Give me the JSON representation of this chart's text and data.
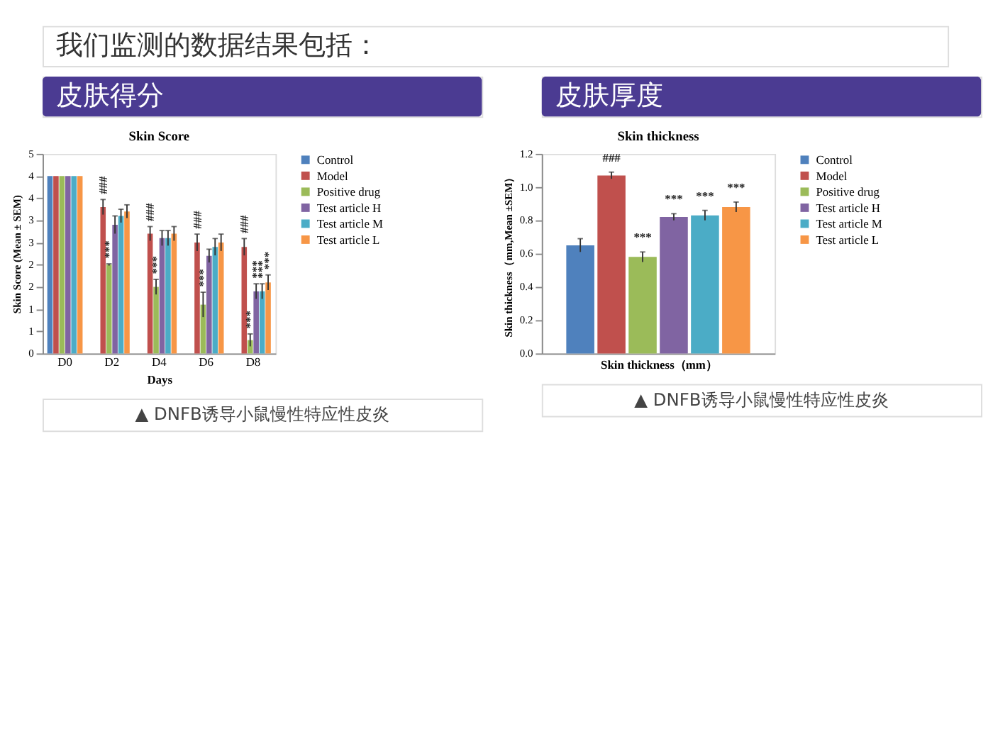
{
  "chart_data": [
    {
      "type": "bar",
      "title": "Skin Score",
      "subtitle": "皮肤得分",
      "xlabel": "Days",
      "ylabel": "Skin Score (Mean ± SEM)",
      "annotations": [
        "我们监测的数据结果包括：",
        "▲ DNFB诱导小鼠慢性特应性皮炎"
      ],
      "categories": [
        "D0",
        "D2",
        "D4",
        "D6",
        "D8"
      ],
      "series": [
        {
          "name": "Control",
          "color": "#4f81bd",
          "values": [
            4.0,
            null,
            null,
            null,
            null
          ]
        },
        {
          "name": "Model",
          "color": "#c0504d",
          "values": [
            4.0,
            3.3,
            2.7,
            2.5,
            2.4
          ],
          "errors": [
            null,
            0.17,
            0.16,
            0.19,
            0.19
          ],
          "value_labels": [
            null,
            "###",
            "###",
            "###",
            "###"
          ]
        },
        {
          "name": "Positive drug",
          "color": "#9bbb59",
          "values": [
            4.0,
            2.0,
            1.5,
            1.1,
            0.3
          ],
          "errors": [
            null,
            0.02,
            0.17,
            0.28,
            0.14
          ],
          "value_labels": [
            null,
            "***",
            "***",
            "***",
            "***"
          ]
        },
        {
          "name": "Test article H",
          "color": "#8064a2",
          "values": [
            4.0,
            2.9,
            2.6,
            2.2,
            1.4
          ],
          "errors": [
            null,
            0.2,
            0.17,
            0.15,
            0.17
          ],
          "value_labels": [
            null,
            null,
            null,
            null,
            "***"
          ]
        },
        {
          "name": "Test article M",
          "color": "#4bacc6",
          "values": [
            4.0,
            3.1,
            2.6,
            2.4,
            1.4
          ],
          "errors": [
            null,
            0.15,
            0.17,
            0.19,
            0.17
          ],
          "value_labels": [
            null,
            null,
            null,
            null,
            "***"
          ]
        },
        {
          "name": "Test article L",
          "color": "#f79646",
          "values": [
            4.0,
            3.2,
            2.7,
            2.5,
            1.6
          ],
          "errors": [
            null,
            0.15,
            0.16,
            0.19,
            0.17
          ],
          "value_labels": [
            null,
            null,
            null,
            null,
            "***"
          ]
        }
      ],
      "ylim": [
        0,
        4.5
      ],
      "yticks": [
        0,
        {
          "value": 0.5,
          "label": "1"
        },
        1,
        {
          "value": 1.5,
          "label": "2"
        },
        2,
        {
          "value": 2.5,
          "label": "3"
        },
        3,
        {
          "value": 3.5,
          "label": "4"
        },
        4,
        {
          "value": 4.5,
          "label": "5"
        }
      ],
      "grid": false,
      "legend": "top right"
    },
    {
      "type": "bar",
      "title": "Skin thickness",
      "subtitle": "皮肤厚度",
      "xlabel": "Skin thickness（mm）",
      "ylabel": "Skin thickness（mm,Mean ±SEM）",
      "annotations": [
        "▲ DNFB诱导小鼠慢性特应性皮炎"
      ],
      "categories": [
        null
      ],
      "series": [
        {
          "name": "Control",
          "color": "#4f81bd",
          "values": [
            0.65
          ],
          "errors": [
            0.04
          ],
          "value_labels": [
            null
          ]
        },
        {
          "name": "Model",
          "color": "#c0504d",
          "values": [
            1.07
          ],
          "errors": [
            0.02
          ],
          "value_labels": [
            "###"
          ]
        },
        {
          "name": "Positive drug",
          "color": "#9bbb59",
          "values": [
            0.58
          ],
          "errors": [
            0.03
          ],
          "value_labels": [
            "***"
          ]
        },
        {
          "name": "Test article H",
          "color": "#8064a2",
          "values": [
            0.82
          ],
          "errors": [
            0.02
          ],
          "value_labels": [
            "***"
          ]
        },
        {
          "name": "Test article M",
          "color": "#4bacc6",
          "values": [
            0.83
          ],
          "errors": [
            0.03
          ],
          "value_labels": [
            "***"
          ]
        },
        {
          "name": "Test article L",
          "color": "#f79646",
          "values": [
            0.88
          ],
          "errors": [
            0.03
          ],
          "value_labels": [
            "***"
          ]
        }
      ],
      "ylim": [
        0,
        1.2
      ],
      "yticks": [
        {
          "value": 0,
          "label": "0.0"
        },
        {
          "value": 0.2,
          "label": "0.2"
        },
        {
          "value": 0.4,
          "label": "0.4"
        },
        {
          "value": 0.6,
          "label": "0.6"
        },
        {
          "value": 0.8,
          "label": "0.8"
        },
        {
          "value": 1.0,
          "label": "1.0"
        },
        {
          "value": 1.2,
          "label": "1.2"
        }
      ],
      "tick_labels": "y",
      "grid": false,
      "legend": "top right"
    }
  ]
}
